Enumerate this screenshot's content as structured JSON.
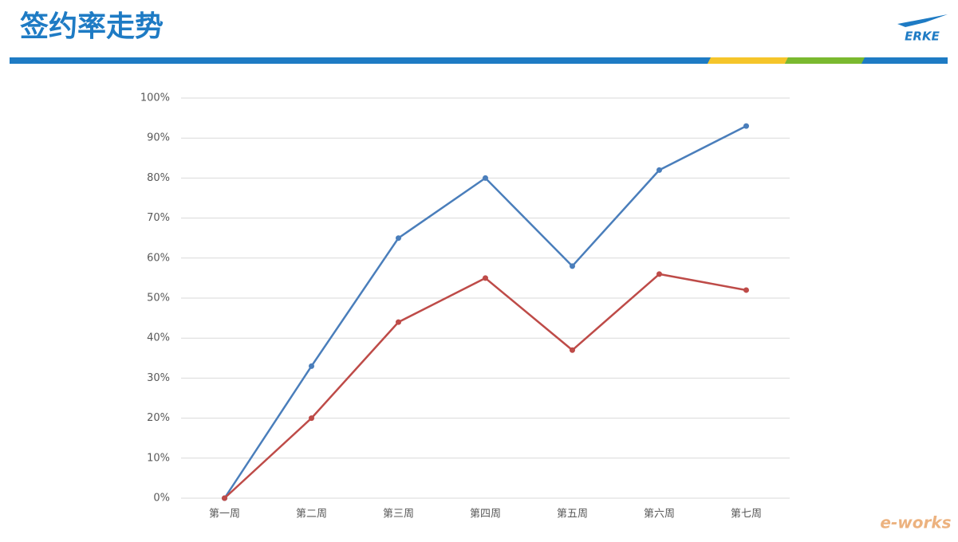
{
  "header": {
    "title": "签约率走势",
    "logo": "ERKE"
  },
  "watermark": "e-works",
  "chart_data": {
    "type": "line",
    "categories": [
      "第一周",
      "第二周",
      "第三周",
      "第四周",
      "第五周",
      "第六周",
      "第七周"
    ],
    "series": [
      {
        "color": "#4a7ebb",
        "values": [
          0,
          33,
          65,
          80,
          58,
          82,
          93
        ]
      },
      {
        "color": "#be4b48",
        "values": [
          0,
          20,
          44,
          55,
          37,
          56,
          52
        ]
      }
    ],
    "ylim": [
      0,
      100
    ],
    "yticks": [
      {
        "value": 0,
        "label": "0%"
      },
      {
        "value": 10,
        "label": "10%"
      },
      {
        "value": 20,
        "label": "20%"
      },
      {
        "value": 30,
        "label": "30%"
      },
      {
        "value": 40,
        "label": "40%"
      },
      {
        "value": 50,
        "label": "50%"
      },
      {
        "value": 60,
        "label": "60%"
      },
      {
        "value": 70,
        "label": "70%"
      },
      {
        "value": 80,
        "label": "80%"
      },
      {
        "value": 90,
        "label": "90%"
      },
      {
        "value": 100,
        "label": "100%"
      }
    ],
    "grid": true
  }
}
